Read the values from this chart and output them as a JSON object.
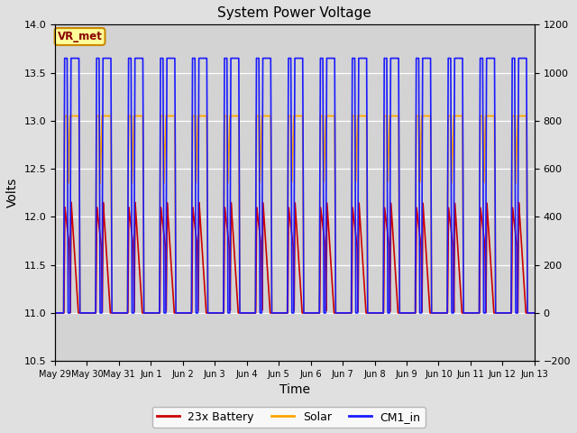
{
  "title": "System Power Voltage",
  "xlabel": "Time",
  "ylabel": "Volts",
  "ylim_left": [
    10.5,
    14.0
  ],
  "ylim_right": [
    -200,
    1200
  ],
  "yticks_left": [
    10.5,
    11.0,
    11.5,
    12.0,
    12.5,
    13.0,
    13.5,
    14.0
  ],
  "yticks_right": [
    -200,
    0,
    200,
    400,
    600,
    800,
    1000,
    1200
  ],
  "background_color": "#e0e0e0",
  "plot_bg_color": "#d3d3d3",
  "grid_color": "#ffffff",
  "color_battery": "#cc0000",
  "color_solar": "#ffa500",
  "color_cm1": "#1a1aff",
  "legend_labels": [
    "23x Battery",
    "Solar",
    "CM1_in"
  ],
  "annotation_label": "VR_met",
  "annotation_bg": "#ffff99",
  "annotation_border": "#cc8800",
  "num_days": 15,
  "x_tick_labels": [
    "May 29",
    "May 30",
    "May 31",
    "Jun 1",
    "Jun 2",
    "Jun 3",
    "Jun 4",
    "Jun 5",
    "Jun 6",
    "Jun 7",
    "Jun 8",
    "Jun 9",
    "Jun 10",
    "Jun 11",
    "Jun 12",
    "Jun 13"
  ]
}
